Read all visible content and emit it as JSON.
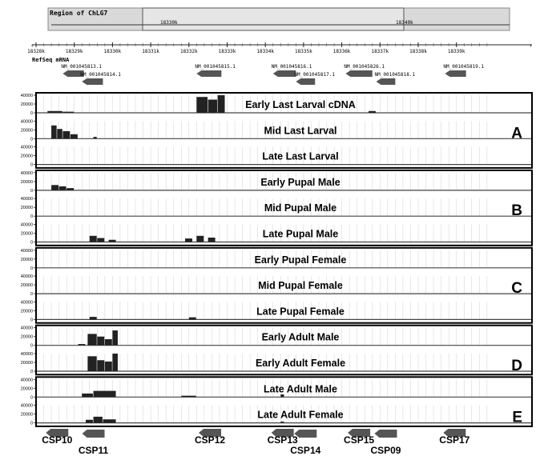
{
  "region": {
    "title": "Region of ChLG7",
    "tick_left": "18330k",
    "tick_right": "18340k"
  },
  "ruler": {
    "ticks": [
      "18328k",
      "18329k",
      "18330k",
      "18331k",
      "18332k",
      "18333k",
      "18334k",
      "18335k",
      "18336k",
      "18337k",
      "18338k",
      "18339k"
    ]
  },
  "refseq": {
    "title": "RefSeq mRNA",
    "genes": [
      {
        "id": "NM_001045813.1",
        "row": 0,
        "start_kb": 18328.7,
        "end_kb": 18329.25
      },
      {
        "id": "NM_001045814.1",
        "row": 1,
        "start_kb": 18329.2,
        "end_kb": 18329.75
      },
      {
        "id": "NM_001045815.1",
        "row": 0,
        "start_kb": 18332.2,
        "end_kb": 18332.85
      },
      {
        "id": "NM_001045816.1",
        "row": 0,
        "start_kb": 18334.2,
        "end_kb": 18334.8
      },
      {
        "id": "NM_001045817.1",
        "row": 1,
        "start_kb": 18334.8,
        "end_kb": 18335.3
      },
      {
        "id": "NM_001045826.1",
        "row": 0,
        "start_kb": 18336.1,
        "end_kb": 18336.8
      },
      {
        "id": "NM_001045818.1",
        "row": 1,
        "start_kb": 18336.9,
        "end_kb": 18337.4
      },
      {
        "id": "NM_001045819.1",
        "row": 0,
        "start_kb": 18338.7,
        "end_kb": 18339.25
      }
    ]
  },
  "coverage_axis": {
    "ticks": [
      "40000",
      "20000",
      "0"
    ],
    "max": 40000
  },
  "tracks": [
    {
      "label": "Early Last Larval cDNA",
      "peaks": [
        [
          18328.3,
          18328.7,
          4000
        ],
        [
          18328.7,
          18329.0,
          2500
        ],
        [
          18332.2,
          18332.5,
          36000
        ],
        [
          18332.5,
          18332.75,
          30000
        ],
        [
          18332.75,
          18332.95,
          40000
        ],
        [
          18336.7,
          18336.9,
          4000
        ]
      ]
    },
    {
      "label": "Mid Last Larval",
      "peaks": [
        [
          18328.4,
          18328.55,
          30000
        ],
        [
          18328.55,
          18328.7,
          22000
        ],
        [
          18328.7,
          18328.9,
          17000
        ],
        [
          18328.9,
          18329.1,
          10000
        ],
        [
          18329.5,
          18329.6,
          4000
        ]
      ]
    },
    {
      "label": "Late Last Larval",
      "peaks": []
    },
    {
      "label": "Early Pupal Male",
      "peaks": [
        [
          18328.4,
          18328.6,
          12000
        ],
        [
          18328.6,
          18328.8,
          9000
        ],
        [
          18328.8,
          18329.0,
          5000
        ]
      ]
    },
    {
      "label": "Mid Pupal Male",
      "peaks": []
    },
    {
      "label": "Late Pupal Male",
      "peaks": [
        [
          18329.4,
          18329.6,
          14000
        ],
        [
          18329.6,
          18329.8,
          9000
        ],
        [
          18329.9,
          18330.1,
          5000
        ],
        [
          18331.9,
          18332.1,
          8000
        ],
        [
          18332.2,
          18332.4,
          14000
        ],
        [
          18332.5,
          18332.7,
          10000
        ]
      ]
    },
    {
      "label": "Early Pupal Female",
      "peaks": []
    },
    {
      "label": "Mid Pupal Female",
      "peaks": []
    },
    {
      "label": "Late Pupal Female",
      "peaks": [
        [
          18329.4,
          18329.6,
          6000
        ],
        [
          18332.0,
          18332.2,
          5000
        ]
      ]
    },
    {
      "label": "Early Adult Male",
      "peaks": [
        [
          18329.35,
          18329.6,
          26000
        ],
        [
          18329.6,
          18329.8,
          20000
        ],
        [
          18329.8,
          18330.0,
          14000
        ],
        [
          18330.0,
          18330.15,
          34000
        ],
        [
          18329.1,
          18329.3,
          3000
        ]
      ]
    },
    {
      "label": "Early Adult Female",
      "peaks": [
        [
          18329.35,
          18329.6,
          34000
        ],
        [
          18329.6,
          18329.8,
          25000
        ],
        [
          18329.8,
          18330.0,
          22000
        ],
        [
          18330.0,
          18330.15,
          40000
        ]
      ]
    },
    {
      "label": "Late Adult Male",
      "peaks": [
        [
          18329.2,
          18329.5,
          8000
        ],
        [
          18329.5,
          18330.1,
          14000
        ],
        [
          18334.4,
          18334.5,
          6000
        ],
        [
          18331.8,
          18332.2,
          3000
        ]
      ]
    },
    {
      "label": "Late Adult Female",
      "peaks": [
        [
          18329.3,
          18329.5,
          7000
        ],
        [
          18329.5,
          18329.75,
          14000
        ],
        [
          18329.75,
          18330.1,
          8000
        ],
        [
          18334.4,
          18334.5,
          3000
        ]
      ]
    }
  ],
  "groups": [
    {
      "letter": "A",
      "tracks": [
        0,
        1,
        2
      ]
    },
    {
      "letter": "B",
      "tracks": [
        3,
        4,
        5
      ]
    },
    {
      "letter": "C",
      "tracks": [
        6,
        7,
        8
      ]
    },
    {
      "letter": "D",
      "tracks": [
        9,
        10
      ]
    },
    {
      "letter": "E",
      "tracks": [
        11,
        12
      ]
    }
  ],
  "csp_labels": [
    {
      "name": "CSP10",
      "row": 0,
      "center_kb": 18328.55
    },
    {
      "name": "CSP11",
      "row": 1,
      "center_kb": 18329.5
    },
    {
      "name": "CSP12",
      "row": 0,
      "center_kb": 18332.55
    },
    {
      "name": "CSP13",
      "row": 0,
      "center_kb": 18334.45
    },
    {
      "name": "CSP14",
      "row": 1,
      "center_kb": 18335.05
    },
    {
      "name": "CSP15",
      "row": 0,
      "center_kb": 18336.45
    },
    {
      "name": "CSP09",
      "row": 1,
      "center_kb": 18337.15
    },
    {
      "name": "CSP17",
      "row": 0,
      "center_kb": 18338.95
    }
  ],
  "colors": {
    "bars": "#222222",
    "gene": "#555555",
    "box": "#000000",
    "grid": "#d0d0d0"
  }
}
